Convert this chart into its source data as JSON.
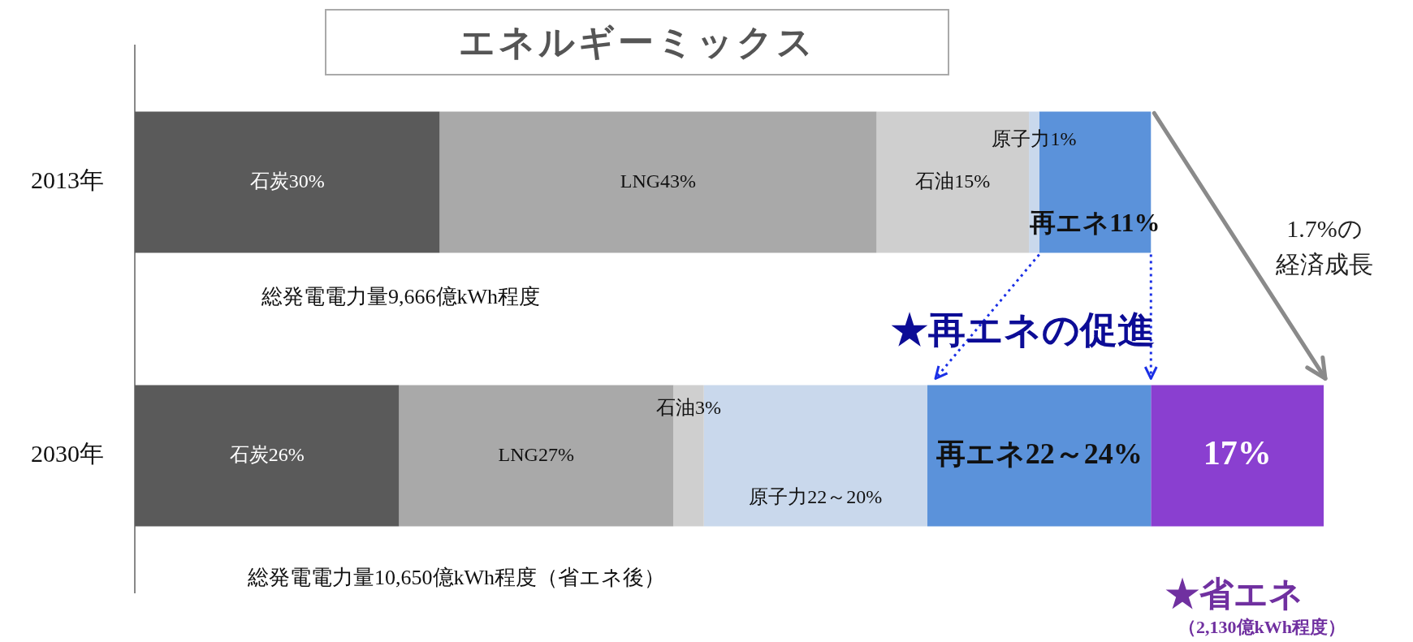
{
  "chart_data": {
    "type": "bar",
    "orientation": "horizontal",
    "stacked": true,
    "title": "エネルギーミックス",
    "categories": [
      "2013年",
      "2030年"
    ],
    "series": [
      {
        "color": "#5a5a5a",
        "values": [
          30,
          26
        ],
        "value_labels": [
          "石炭30%",
          "石炭26%"
        ]
      },
      {
        "color": "#a9a9a9",
        "values": [
          43,
          27
        ],
        "value_labels": [
          "LNG43%",
          "LNG27%"
        ]
      },
      {
        "color": "#cfcfcf",
        "values": [
          15,
          3
        ],
        "value_labels": [
          "石油15%",
          "石油3%"
        ]
      },
      {
        "color": "#c9d8ec",
        "values": [
          1,
          22
        ],
        "value_labels": [
          "原子力1%",
          "原子力22～20%"
        ]
      },
      {
        "color": "#5b92da",
        "values": [
          11,
          22
        ],
        "value_labels": [
          "再エネ11%",
          "再エネ22～24%"
        ]
      },
      {
        "color": "#8a3fd0",
        "values": [
          null,
          17
        ],
        "value_labels": [
          null,
          "17%"
        ]
      }
    ],
    "annotations": [
      "総発電電力量9,666億kWh程度",
      "総発電電力量10,650億kWh程度（省エネ後）",
      "★再エネの促進",
      "1.7%の経済成長",
      "★省エネ",
      "（2,130億kWh程度）"
    ]
  }
}
